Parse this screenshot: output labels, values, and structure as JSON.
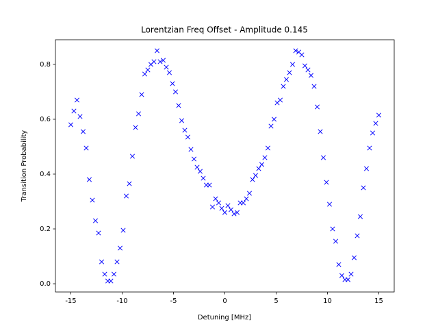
{
  "chart_data": {
    "type": "scatter",
    "title": "Lorentzian Freq Offset - Amplitude 0.145",
    "x_label": "Detuning [MHz]",
    "y_label": "Transition Probability",
    "marker": "x",
    "series": [
      {
        "color": "#0000ff",
        "x": [
          -15,
          -14.7,
          -14.4,
          -14.1,
          -13.8,
          -13.5,
          -13.2,
          -12.9,
          -12.6,
          -12.3,
          -12,
          -11.7,
          -11.4,
          -11.1,
          -10.8,
          -10.5,
          -10.2,
          -9.9,
          -9.6,
          -9.3,
          -9,
          -8.7,
          -8.4,
          -8.1,
          -7.8,
          -7.5,
          -7.2,
          -6.9,
          -6.6,
          -6.3,
          -6,
          -5.7,
          -5.4,
          -5.1,
          -4.8,
          -4.5,
          -4.2,
          -3.9,
          -3.6,
          -3.3,
          -3,
          -2.7,
          -2.4,
          -2.1,
          -1.8,
          -1.5,
          -1.2,
          -0.9,
          -0.6,
          -0.3,
          0,
          0.3,
          0.6,
          0.9,
          1.2,
          1.5,
          1.8,
          2.1,
          2.4,
          2.7,
          3,
          3.3,
          3.6,
          3.9,
          4.2,
          4.5,
          4.8,
          5.1,
          5.4,
          5.7,
          6,
          6.3,
          6.6,
          6.9,
          7.2,
          7.5,
          7.8,
          8.1,
          8.4,
          8.7,
          9,
          9.3,
          9.6,
          9.9,
          10.2,
          10.5,
          10.8,
          11.1,
          11.4,
          11.7,
          12,
          12.3,
          12.6,
          12.9,
          13.2,
          13.5,
          13.8,
          14.1,
          14.4,
          14.7,
          15
        ],
        "values": [
          0.58,
          0.63,
          0.67,
          0.61,
          0.555,
          0.495,
          0.38,
          0.305,
          0.23,
          0.185,
          0.08,
          0.035,
          0.01,
          0.01,
          0.035,
          0.08,
          0.13,
          0.195,
          0.32,
          0.365,
          0.465,
          0.57,
          0.62,
          0.69,
          0.765,
          0.78,
          0.8,
          0.81,
          0.85,
          0.81,
          0.815,
          0.79,
          0.77,
          0.73,
          0.7,
          0.65,
          0.595,
          0.56,
          0.535,
          0.49,
          0.455,
          0.425,
          0.41,
          0.385,
          0.36,
          0.36,
          0.28,
          0.31,
          0.295,
          0.275,
          0.26,
          0.285,
          0.27,
          0.255,
          0.26,
          0.295,
          0.295,
          0.31,
          0.33,
          0.38,
          0.395,
          0.42,
          0.435,
          0.46,
          0.495,
          0.575,
          0.6,
          0.66,
          0.67,
          0.72,
          0.745,
          0.77,
          0.8,
          0.85,
          0.845,
          0.835,
          0.795,
          0.78,
          0.76,
          0.72,
          0.645,
          0.555,
          0.46,
          0.37,
          0.29,
          0.2,
          0.155,
          0.07,
          0.03,
          0.015,
          0.015,
          0.035,
          0.095,
          0.175,
          0.245,
          0.35,
          0.42,
          0.495,
          0.55,
          0.585,
          0.615
        ]
      }
    ],
    "xlim": [
      -16.5,
      16.5
    ],
    "ylim": [
      -0.03,
      0.89
    ],
    "xticks": [
      -15,
      -10,
      -5,
      0,
      5,
      10,
      15
    ],
    "yticks": [
      {
        "value": 0,
        "label": "0.0"
      },
      0.2,
      0.4,
      0.6,
      0.8
    ],
    "grid": false
  }
}
